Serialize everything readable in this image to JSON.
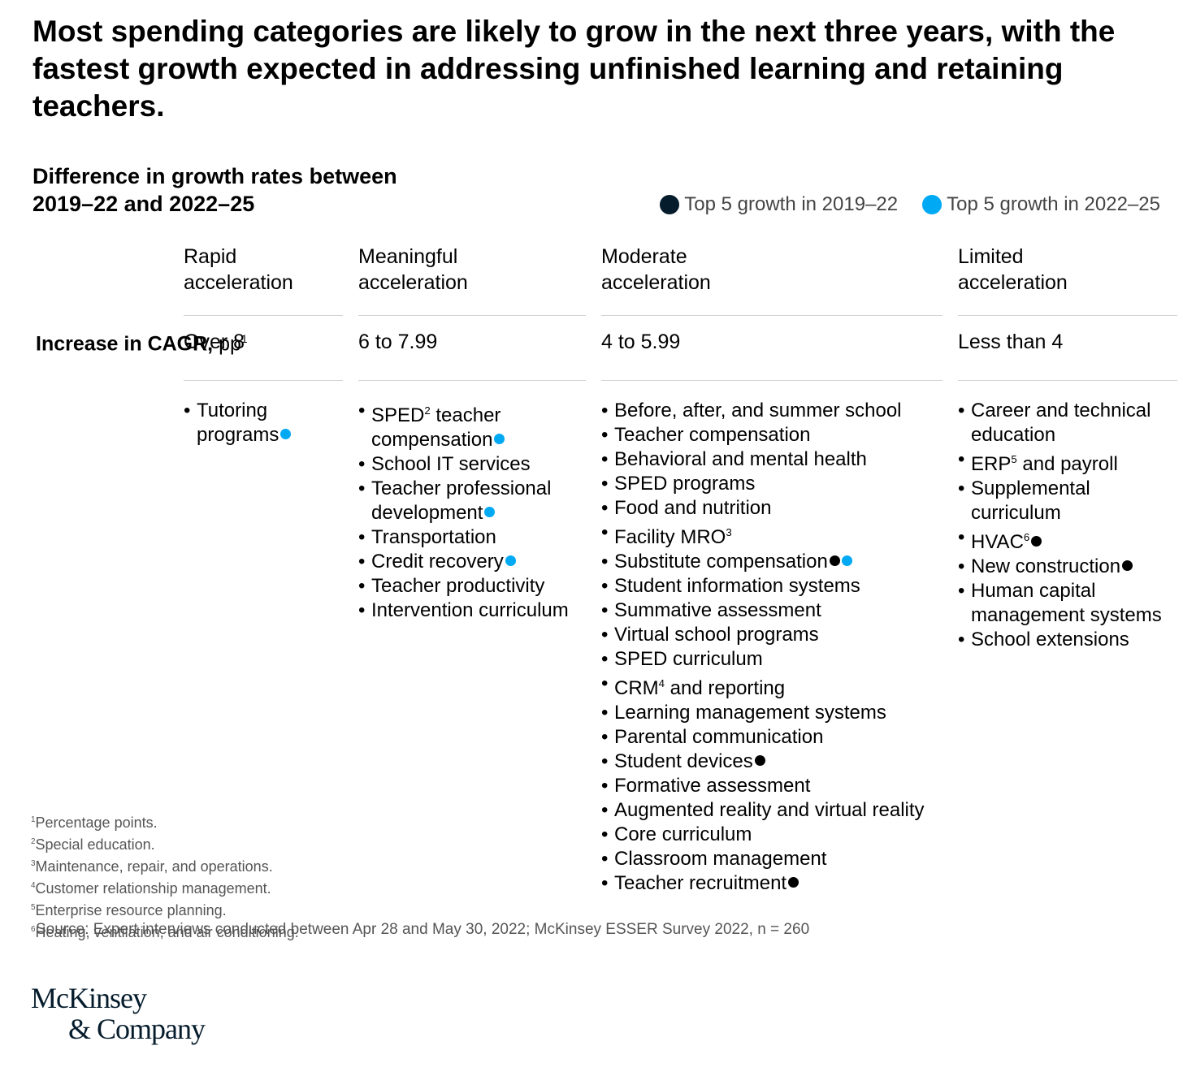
{
  "title": "Most spending categories are likely to grow in the next three years, with the fastest growth expected in addressing unfinished learning and retaining teachers.",
  "subtitle_line1": "Difference in growth rates between",
  "subtitle_line2": "2019–22 and 2022–25",
  "legend": [
    {
      "label": "Top 5 growth in 2019–22",
      "color": "#000000"
    },
    {
      "label": "Top 5 growth in 2022–25",
      "color": "#00a9f4"
    }
  ],
  "row_label": {
    "bold": "Increase in CAGR,",
    "unit": "pp",
    "sup": "1"
  },
  "chart_data": {
    "type": "table",
    "columns": [
      {
        "head_line1": "Rapid",
        "head_line2": "acceleration",
        "range": "Over 8",
        "items": [
          {
            "text": "Tutoring programs",
            "dots": [
              "blue"
            ]
          }
        ]
      },
      {
        "head_line1": "Meaningful",
        "head_line2": "acceleration",
        "range": "6 to 7.99",
        "items": [
          {
            "text": "SPED",
            "sup": "2",
            "after": " teacher compensation",
            "dots": [
              "blue"
            ]
          },
          {
            "text": "School IT services",
            "dots": []
          },
          {
            "text": "Teacher professional development",
            "dots": [
              "blue"
            ]
          },
          {
            "text": "Transportation",
            "dots": []
          },
          {
            "text": "Credit recovery",
            "dots": [
              "blue"
            ]
          },
          {
            "text": "Teacher productivity",
            "dots": []
          },
          {
            "text": "Intervention curriculum",
            "dots": []
          }
        ]
      },
      {
        "head_line1": "Moderate",
        "head_line2": "acceleration",
        "range": "4 to 5.99",
        "items": [
          {
            "text": "Before, after, and summer school",
            "dots": []
          },
          {
            "text": "Teacher compensation",
            "dots": []
          },
          {
            "text": "Behavioral and mental health",
            "dots": []
          },
          {
            "text": "SPED programs",
            "dots": []
          },
          {
            "text": "Food and nutrition",
            "dots": []
          },
          {
            "text": "Facility MRO",
            "sup": "3",
            "after": "",
            "dots": []
          },
          {
            "text": "Substitute compensation",
            "dots": [
              "dark",
              "blue"
            ]
          },
          {
            "text": "Student information systems",
            "dots": []
          },
          {
            "text": "Summative assessment",
            "dots": []
          },
          {
            "text": "Virtual school programs",
            "dots": []
          },
          {
            "text": "SPED curriculum",
            "dots": []
          },
          {
            "text": "CRM",
            "sup": "4",
            "after": " and reporting",
            "dots": []
          },
          {
            "text": "Learning management systems",
            "dots": []
          },
          {
            "text": "Parental communication",
            "dots": []
          },
          {
            "text": "Student devices",
            "dots": [
              "dark"
            ]
          },
          {
            "text": "Formative assessment",
            "dots": []
          },
          {
            "text": "Augmented reality and virtual reality",
            "dots": []
          },
          {
            "text": "Core curriculum",
            "dots": []
          },
          {
            "text": "Classroom management",
            "dots": []
          },
          {
            "text": "Teacher recruitment",
            "dots": [
              "dark"
            ]
          }
        ]
      },
      {
        "head_line1": "Limited",
        "head_line2": "acceleration",
        "range": "Less than 4",
        "items": [
          {
            "text": "Career and technical education",
            "dots": []
          },
          {
            "text": "ERP",
            "sup": "5",
            "after": " and payroll",
            "dots": []
          },
          {
            "text": "Supplemental curriculum",
            "dots": []
          },
          {
            "text": "HVAC",
            "sup": "6",
            "after": "",
            "dots": [
              "dark"
            ]
          },
          {
            "text": "New construction",
            "dots": [
              "dark"
            ]
          },
          {
            "text": "Human capital management systems",
            "dots": []
          },
          {
            "text": "School extensions",
            "dots": []
          }
        ]
      }
    ]
  },
  "footnotes": [
    {
      "n": "1",
      "text": "Percentage points."
    },
    {
      "n": "2",
      "text": "Special education."
    },
    {
      "n": "3",
      "text": "Maintenance, repair, and operations."
    },
    {
      "n": "4",
      "text": "Customer relationship management."
    },
    {
      "n": "5",
      "text": "Enterprise resource planning."
    },
    {
      "n": "6",
      "text": "Heating, ventilation, and air conditioning."
    }
  ],
  "source": "Source: Expert interviews conducted between Apr 28 and May 30, 2022; McKinsey ESSER Survey 2022, n = 260",
  "logo": {
    "line1": "McKinsey",
    "line2": "& Company"
  },
  "colors": {
    "dark_dot": "#000000",
    "blue_dot": "#00a9f4"
  }
}
